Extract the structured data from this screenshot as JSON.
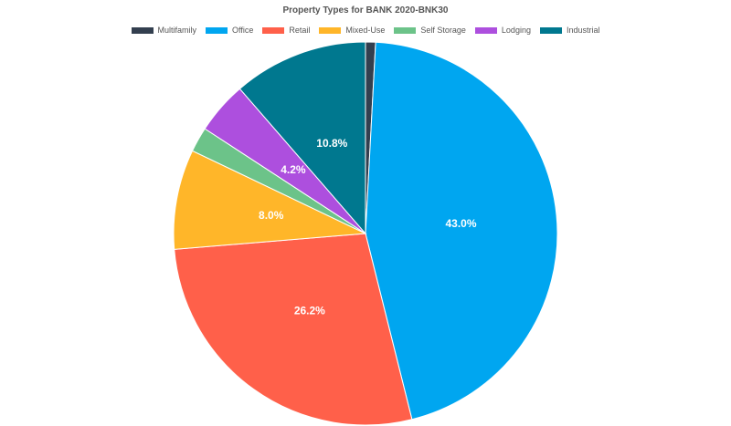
{
  "chart_data": {
    "type": "pie",
    "title": "Property Types for BANK 2020-BNK30",
    "legend_position": "top",
    "slices": [
      {
        "label": "Multifamily",
        "value": 0.8,
        "color": "#333f4f",
        "value_label": ""
      },
      {
        "label": "Office",
        "value": 43.0,
        "color": "#00a6f0",
        "value_label": "43.0%"
      },
      {
        "label": "Retail",
        "value": 26.2,
        "color": "#ff604a",
        "value_label": "26.2%"
      },
      {
        "label": "Mixed-Use",
        "value": 8.0,
        "color": "#ffb629",
        "value_label": "8.0%"
      },
      {
        "label": "Self Storage",
        "value": 2.0,
        "color": "#6cc389",
        "value_label": ""
      },
      {
        "label": "Lodging",
        "value": 4.2,
        "color": "#ad4fde",
        "value_label": "4.2%"
      },
      {
        "label": "Industrial",
        "value": 10.8,
        "color": "#00788f",
        "value_label": "10.8%"
      }
    ]
  }
}
